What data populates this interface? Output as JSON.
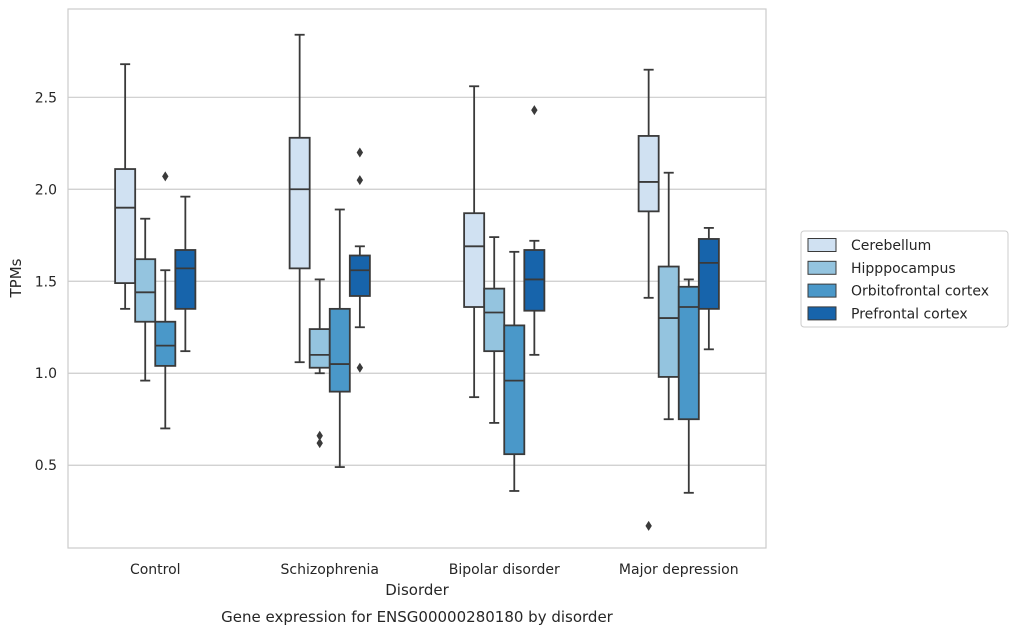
{
  "chart_data": {
    "type": "box",
    "caption": "Gene expression for ENSG00000280180 by disorder",
    "xlabel": "Disorder",
    "ylabel": "TPMs",
    "ylim": [
      0.05,
      2.98
    ],
    "yticks": [
      0.5,
      1.0,
      1.5,
      2.0,
      2.5
    ],
    "ytick_labels": [
      "0.5",
      "1.0",
      "1.5",
      "2.0",
      "2.5"
    ],
    "grid": "horizontal",
    "legend_position": "right",
    "categories": [
      "Control",
      "Schizophrenia",
      "Bipolar disorder",
      "Major depression"
    ],
    "series": [
      {
        "name": "Cerebellum",
        "color": "#d0e1f2",
        "boxes": [
          {
            "whisker_low": 1.35,
            "q1": 1.49,
            "median": 1.9,
            "q3": 2.11,
            "whisker_high": 2.68,
            "outliers": []
          },
          {
            "whisker_low": 1.06,
            "q1": 1.57,
            "median": 2.0,
            "q3": 2.28,
            "whisker_high": 2.84,
            "outliers": []
          },
          {
            "whisker_low": 0.87,
            "q1": 1.36,
            "median": 1.69,
            "q3": 1.87,
            "whisker_high": 2.56,
            "outliers": []
          },
          {
            "whisker_low": 1.41,
            "q1": 1.88,
            "median": 2.04,
            "q3": 2.29,
            "whisker_high": 2.65,
            "outliers": [
              0.17
            ]
          }
        ]
      },
      {
        "name": "Hipppocampus",
        "color": "#94c4df",
        "boxes": [
          {
            "whisker_low": 0.96,
            "q1": 1.28,
            "median": 1.44,
            "q3": 1.62,
            "whisker_high": 1.84,
            "outliers": []
          },
          {
            "whisker_low": 1.0,
            "q1": 1.03,
            "median": 1.1,
            "q3": 1.24,
            "whisker_high": 1.51,
            "outliers": [
              0.66,
              0.62
            ]
          },
          {
            "whisker_low": 0.73,
            "q1": 1.12,
            "median": 1.33,
            "q3": 1.46,
            "whisker_high": 1.74,
            "outliers": []
          },
          {
            "whisker_low": 0.75,
            "q1": 0.98,
            "median": 1.3,
            "q3": 1.58,
            "whisker_high": 2.09,
            "outliers": []
          }
        ]
      },
      {
        "name": "Orbitofrontal cortex",
        "color": "#4a98c9",
        "boxes": [
          {
            "whisker_low": 0.7,
            "q1": 1.04,
            "median": 1.15,
            "q3": 1.28,
            "whisker_high": 1.56,
            "outliers": [
              2.07
            ]
          },
          {
            "whisker_low": 0.49,
            "q1": 0.9,
            "median": 1.05,
            "q3": 1.35,
            "whisker_high": 1.89,
            "outliers": []
          },
          {
            "whisker_low": 0.36,
            "q1": 0.56,
            "median": 0.96,
            "q3": 1.26,
            "whisker_high": 1.66,
            "outliers": []
          },
          {
            "whisker_low": 0.35,
            "q1": 0.75,
            "median": 1.36,
            "q3": 1.47,
            "whisker_high": 1.51,
            "outliers": []
          }
        ]
      },
      {
        "name": "Prefrontal cortex",
        "color": "#1764ab",
        "boxes": [
          {
            "whisker_low": 1.12,
            "q1": 1.35,
            "median": 1.57,
            "q3": 1.67,
            "whisker_high": 1.96,
            "outliers": []
          },
          {
            "whisker_low": 1.25,
            "q1": 1.42,
            "median": 1.56,
            "q3": 1.64,
            "whisker_high": 1.69,
            "outliers": [
              2.2,
              2.05,
              1.03
            ]
          },
          {
            "whisker_low": 1.1,
            "q1": 1.34,
            "median": 1.51,
            "q3": 1.67,
            "whisker_high": 1.72,
            "outliers": [
              2.43
            ]
          },
          {
            "whisker_low": 1.13,
            "q1": 1.35,
            "median": 1.6,
            "q3": 1.73,
            "whisker_high": 1.79,
            "outliers": []
          }
        ]
      }
    ]
  }
}
